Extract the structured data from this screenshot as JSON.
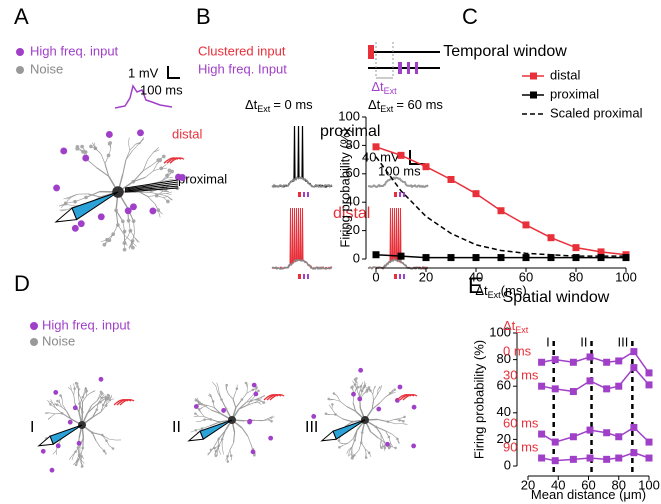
{
  "panel_a": {
    "label": "A",
    "legend": [
      "High freq. input",
      "Noise"
    ],
    "scale": [
      "1 mV",
      "100 ms"
    ],
    "distal": "distal",
    "proximal": "proximal"
  },
  "panel_b": {
    "label": "B",
    "clustered": "Clustered input",
    "high_freq": "High freq. Input",
    "dt": {
      "main": "Δt",
      "sub": "Ext"
    },
    "cond0": {
      "main": "Δt",
      "sub": "Ext",
      "rest": "= 0 ms"
    },
    "cond60": {
      "main": "Δt",
      "sub": "Ext",
      "rest": "= 60 ms"
    },
    "proximal": "proximal",
    "scale": [
      "40 mV",
      "100 ms"
    ],
    "distal": "distal"
  },
  "panel_d": {
    "label": "D",
    "legend": [
      "High freq. input",
      "Noise"
    ],
    "cases": [
      "I",
      "II",
      "III"
    ]
  },
  "chart_data": [
    {
      "type": "line",
      "panel_label": "C",
      "title": "Temporal window",
      "xlabel": [
        "Δt",
        "Ext",
        "(ms)"
      ],
      "ylabel": "Firing probability (%)",
      "xlim": [
        0,
        100
      ],
      "ylim": [
        0,
        100
      ],
      "xticks": [
        0,
        20,
        40,
        60,
        80,
        100
      ],
      "yticks": [
        0,
        20,
        40,
        60,
        80,
        100
      ],
      "legend": "upper right",
      "x": [
        0,
        10,
        20,
        30,
        40,
        50,
        60,
        70,
        80,
        90,
        100
      ],
      "series": [
        {
          "name": "distal",
          "color": "#e8303a",
          "marker": true,
          "dash": false,
          "values": [
            79,
            73,
            65,
            56,
            46,
            34,
            24,
            15,
            8,
            5,
            3
          ]
        },
        {
          "name": "proximal",
          "color": "#000000",
          "marker": true,
          "dash": false,
          "values": [
            3,
            2,
            1,
            1,
            1,
            1,
            1,
            1,
            1,
            1,
            1
          ]
        },
        {
          "name": "Scaled proximal",
          "color": "#000000",
          "marker": false,
          "dash": true,
          "values": [
            72,
            48,
            30,
            18,
            10,
            6,
            4,
            3,
            2,
            2,
            2
          ]
        }
      ]
    },
    {
      "type": "line",
      "panel_label": "E",
      "title": "Spatial window",
      "xlabel": [
        "Mean distance (μm)"
      ],
      "ylabel": "Firing probability (%)",
      "series_label": {
        "main": "Δt",
        "sub": "Ext"
      },
      "label_color": "#e8303a",
      "xlim": [
        20,
        100
      ],
      "ylim": [
        0,
        100
      ],
      "xticks": [
        20,
        40,
        60,
        80,
        100
      ],
      "yticks": [
        0,
        20,
        40,
        60,
        80,
        100
      ],
      "vlines": [
        {
          "value": 37,
          "label": "I"
        },
        {
          "value": 62,
          "label": "II"
        },
        {
          "value": 89,
          "label": "III"
        }
      ],
      "x": [
        29,
        38,
        50,
        61,
        72,
        80,
        90,
        100
      ],
      "series": [
        {
          "name": "0 ms",
          "color": "#a040c8",
          "marker": true,
          "dash": false,
          "values": [
            78,
            80,
            78,
            82,
            78,
            79,
            86,
            70
          ]
        },
        {
          "name": "30 ms",
          "color": "#a040c8",
          "marker": true,
          "dash": false,
          "values": [
            60,
            58,
            56,
            64,
            58,
            60,
            74,
            61
          ]
        },
        {
          "name": "60 ms",
          "color": "#a040c8",
          "marker": true,
          "dash": false,
          "values": [
            24,
            18,
            22,
            27,
            25,
            22,
            29,
            18
          ]
        },
        {
          "name": "90 ms",
          "color": "#a040c8",
          "marker": true,
          "dash": false,
          "values": [
            6,
            4,
            5,
            6,
            5,
            6,
            10,
            6
          ]
        }
      ]
    }
  ]
}
